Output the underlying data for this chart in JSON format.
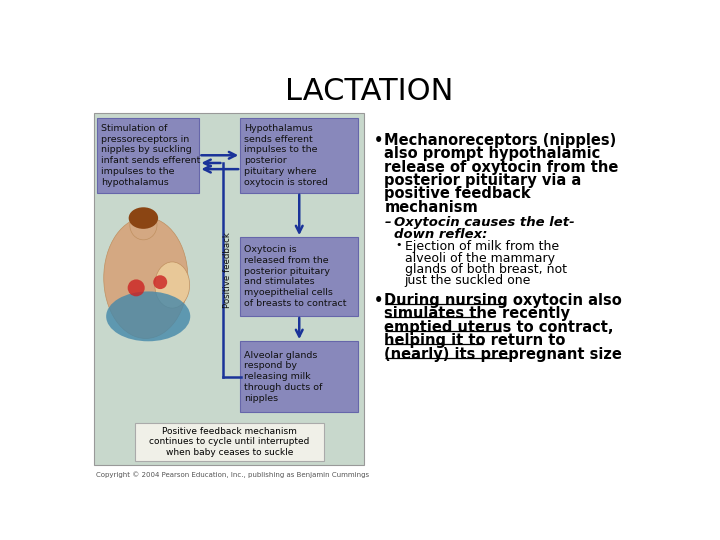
{
  "title": "LACTATION",
  "title_fontsize": 22,
  "background_color": "#ffffff",
  "diagram_bg": "#c8d8cc",
  "box_color": "#8888bb",
  "box_edge_color": "#6666aa",
  "arrow_color": "#1a3399",
  "box1_text": "Stimulation of\npressoreceptors in\nnipples by suckling\ninfant sends efferent\nimpulses to the\nhypothalamus",
  "box2_text": "Hypothalamus\nsends efferent\nimpulses to the\nposterior\npituitary where\noxytocin is stored",
  "box3_text": "Oxytocin is\nreleased from the\nposterior pituitary\nand stimulates\nmyoepithelial cells\nof breasts to contract",
  "box4_text": "Alveolar glands\nrespond by\nreleasing milk\nthrough ducts of\nnipples",
  "bottom_text": "Positive feedback mechanism\ncontinues to cycle until interrupted\nwhen baby ceases to suckle",
  "positive_feedback_label": "Positive feedback",
  "bullet1_line1": "Mechanoreceptors (nipples)",
  "bullet1_line2": "also prompt hypothalamic",
  "bullet1_line3": "release of oxytocin from the",
  "bullet1_line4": "posterior pituitary via a",
  "bullet1_line5": "positive feedback",
  "bullet1_line6": "mechanism",
  "dash1_line1": "Oxytocin causes the let-",
  "dash1_line2": "down reflex:",
  "sub1_line1": "Ejection of milk from the",
  "sub1_line2": "alveoli of the mammary",
  "sub1_line3": "glands of both breast, not",
  "sub1_line4": "just the suckled one",
  "b2_line1": "During nursing oxytocin also",
  "b2_line2": "simulates the recently",
  "b2_line3": "emptied uterus to contract,",
  "b2_line4": "helping it to return to",
  "b2_line5": "(nearly) its prepregnant size",
  "copyright_text": "Copyright © 2004 Pearson Education, Inc., publishing as Benjamin Cummings",
  "illustration_color": "#d4a882",
  "illustration_bg": "#c8d8cc"
}
